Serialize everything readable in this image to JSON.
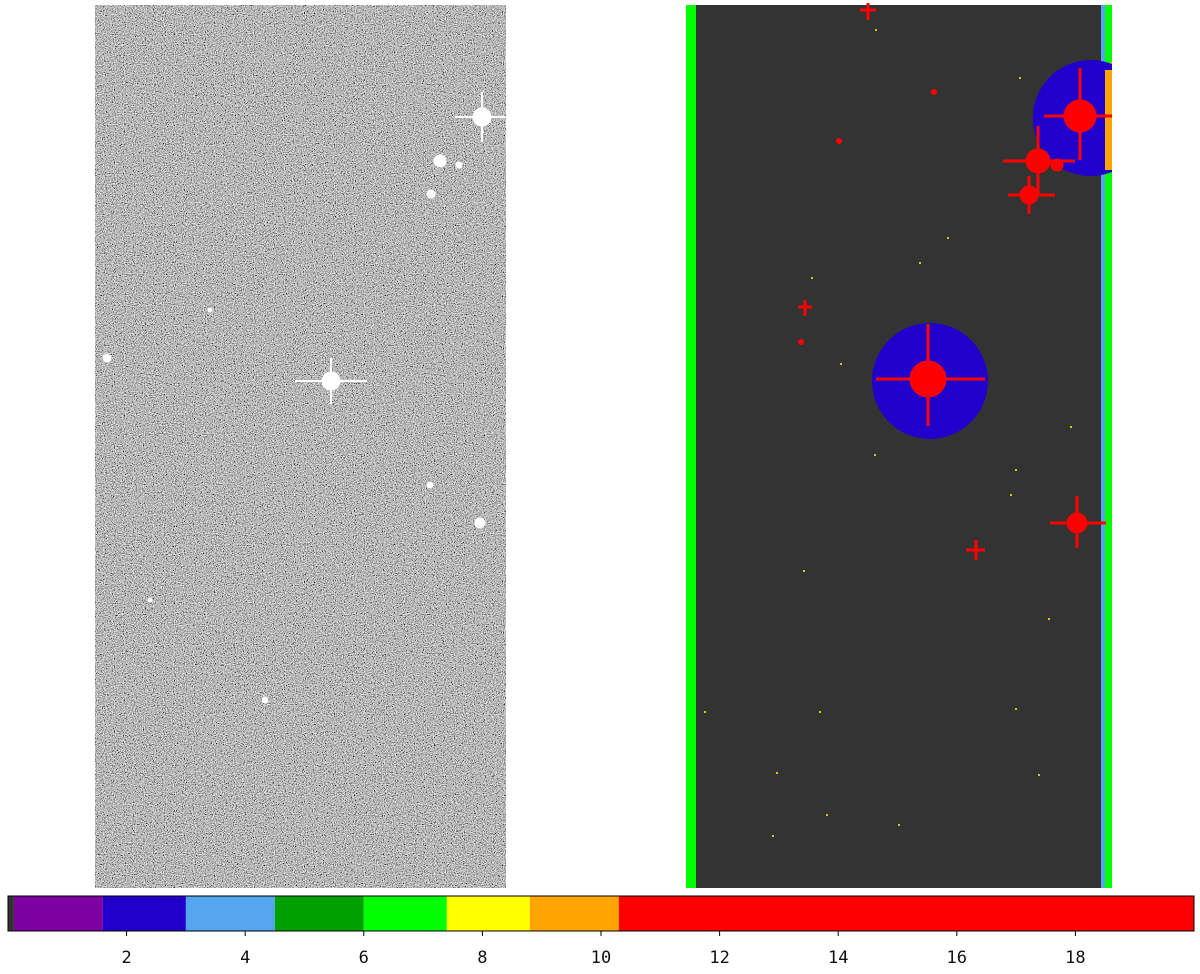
{
  "chart_data": {
    "type": "colorbar",
    "bounds": [
      0,
      0.1,
      1.6,
      3.0,
      4.5,
      6.0,
      7.4,
      8.8,
      10.3,
      20
    ],
    "colors": [
      "#333333",
      "#7d00a0",
      "#2200cc",
      "#55a5f0",
      "#00a000",
      "#00ff00",
      "#ffff00",
      "#ffa500",
      "#ff0000"
    ],
    "xlim": [
      0,
      20
    ],
    "xticks": [
      2,
      4,
      6,
      8,
      10,
      12,
      14,
      16,
      18
    ]
  }
}
